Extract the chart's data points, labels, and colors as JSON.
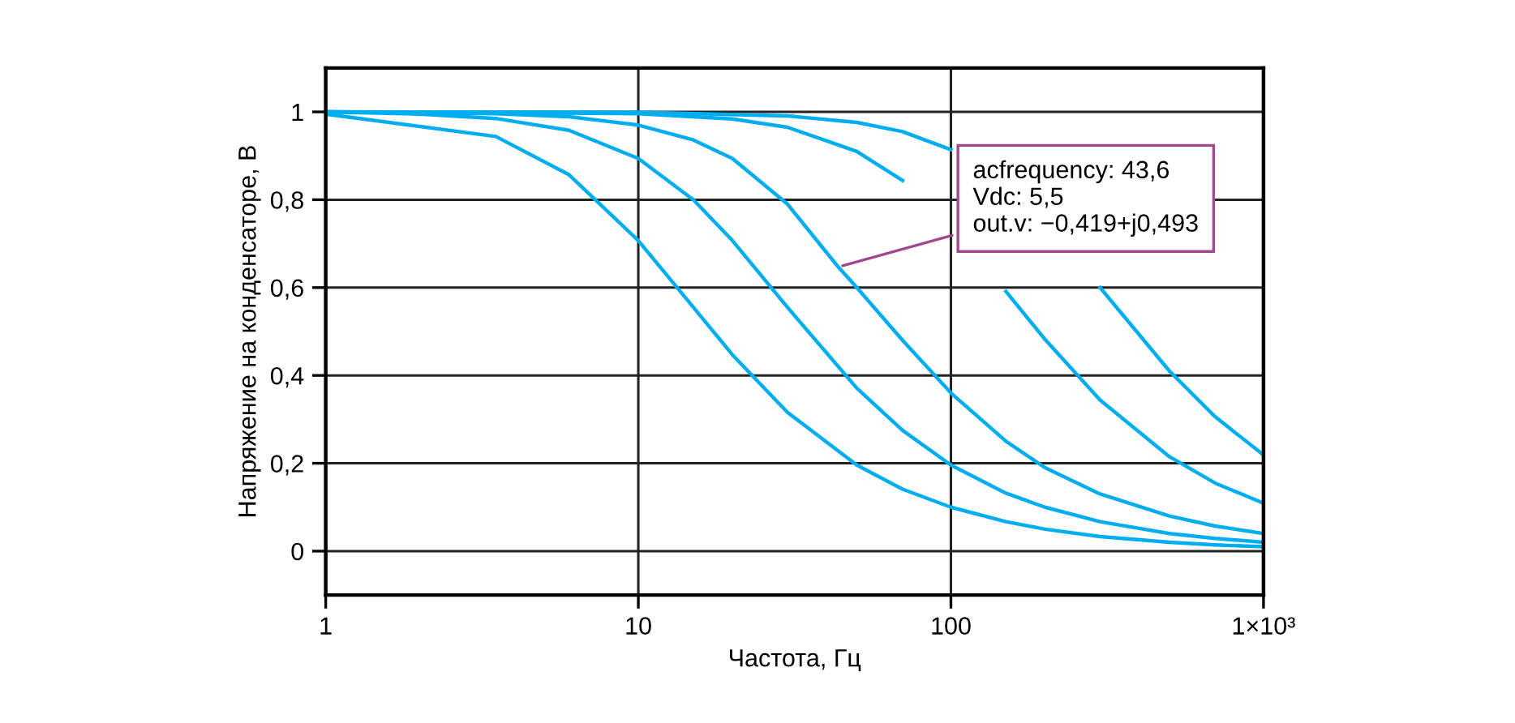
{
  "chart_data": {
    "type": "line",
    "xlabel": "Частота, Гц",
    "ylabel": "Напряжение на конденсаторе, В",
    "log": "x",
    "grid": true,
    "marker": "none",
    "line_style": "solid",
    "xlim": [
      1,
      1000
    ],
    "xticks": [
      1,
      10,
      100,
      {
        "value": 1000,
        "label": "1×10³"
      }
    ],
    "ylim": [
      -0.1,
      1.1
    ],
    "yticks": [
      0,
      {
        "value": 0.2,
        "label": "0,2"
      },
      {
        "value": 0.4,
        "label": "0,4"
      },
      {
        "value": 0.6,
        "label": "0,6"
      },
      {
        "value": 0.8,
        "label": "0,8"
      },
      1
    ],
    "annotations": [
      {
        "text": "acfrequency: 43,6\nVdc: 5,5\nout.v: −0,419+j0,493",
        "x": 43.6,
        "y": 0.647
      }
    ],
    "series": [
      {
        "color": "#00aeef",
        "x": [
          1,
          3.5,
          6,
          10,
          15,
          20,
          30,
          50,
          70,
          100,
          150,
          200,
          300,
          500,
          700,
          1000
        ],
        "values": [
          0.995,
          0.944,
          0.857,
          0.707,
          0.555,
          0.447,
          0.316,
          0.196,
          0.141,
          0.1,
          0.067,
          0.05,
          0.033,
          0.02,
          0.014,
          0.01
        ]
      },
      {
        "color": "#00aeef",
        "x": [
          1,
          2,
          3.5,
          6,
          10,
          15,
          20,
          30,
          50,
          70,
          100,
          150,
          200,
          300,
          500,
          700,
          1000
        ],
        "values": [
          1.0,
          0.995,
          0.985,
          0.958,
          0.894,
          0.8,
          0.707,
          0.555,
          0.371,
          0.275,
          0.196,
          0.132,
          0.1,
          0.067,
          0.04,
          0.029,
          0.02
        ]
      },
      {
        "color": "#00aeef",
        "x": [
          1,
          3.5,
          6,
          10,
          15,
          20,
          30,
          43.6,
          50,
          70,
          100,
          150,
          200,
          300,
          500,
          700,
          1000
        ],
        "values": [
          1.0,
          0.996,
          0.989,
          0.97,
          0.936,
          0.894,
          0.79,
          0.647,
          0.6,
          0.48,
          0.36,
          0.25,
          0.19,
          0.13,
          0.08,
          0.057,
          0.04
        ]
      },
      {
        "color": "#00aeef",
        "x": [
          1,
          10,
          20,
          30,
          50,
          70,
          100,
          150,
          200,
          300,
          500,
          700,
          1000
        ],
        "values": [
          1.0,
          0.996,
          0.984,
          0.965,
          0.91,
          0.844,
          null,
          0.591,
          0.482,
          0.344,
          0.215,
          0.155,
          0.109
        ]
      },
      {
        "color": "#00aeef",
        "x": [
          1,
          10,
          30,
          50,
          70,
          100,
          150,
          200,
          300,
          500,
          700,
          1000
        ],
        "values": [
          1.0,
          0.999,
          0.991,
          0.976,
          0.955,
          0.914,
          null,
          null,
          0.6,
          0.41,
          0.306,
          0.219
        ]
      }
    ]
  }
}
